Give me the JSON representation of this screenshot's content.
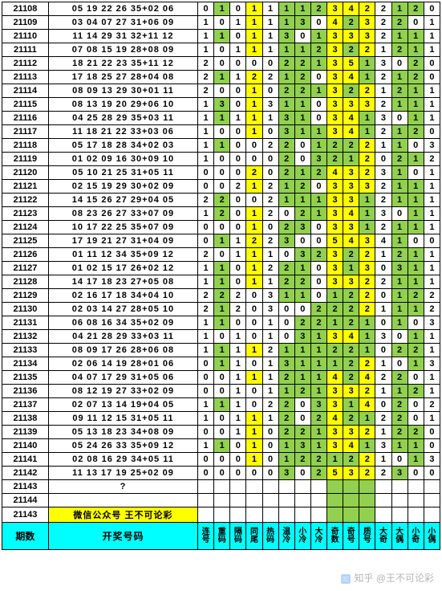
{
  "colors": {
    "green": "#92d050",
    "yellow": "#ffff00",
    "cyan": "#00ffff",
    "white": "#ffffff"
  },
  "greenish_columns": [
    1,
    5,
    6,
    7,
    9,
    10,
    12,
    13
  ],
  "rows": [
    {
      "p": "21108",
      "l": "05 19 22 26 35+02 06",
      "v": [
        0,
        1,
        0,
        1,
        1,
        1,
        1,
        2,
        3,
        4,
        2,
        2,
        1,
        2,
        0
      ]
    },
    {
      "p": "21109",
      "l": "03 04 07 27 31+06 09",
      "v": [
        1,
        0,
        1,
        1,
        1,
        1,
        3,
        0,
        4,
        2,
        3,
        2,
        2,
        0,
        1
      ]
    },
    {
      "p": "21110",
      "l": "11 14 29 31 32+11 12",
      "v": [
        1,
        1,
        0,
        1,
        1,
        3,
        0,
        1,
        3,
        3,
        3,
        2,
        1,
        1,
        1
      ]
    },
    {
      "p": "21111",
      "l": "07 08 15 19 28+08 09",
      "v": [
        1,
        0,
        1,
        1,
        1,
        1,
        1,
        2,
        3,
        2,
        2,
        1,
        2,
        1,
        1
      ]
    },
    {
      "p": "21112",
      "l": "18 21 22 23 35+11 12",
      "v": [
        2,
        0,
        0,
        0,
        0,
        2,
        2,
        1,
        3,
        5,
        1,
        3,
        0,
        2,
        0
      ]
    },
    {
      "p": "21113",
      "l": "17 18 25 27 28+04 08",
      "v": [
        2,
        1,
        1,
        2,
        2,
        1,
        2,
        0,
        3,
        4,
        1,
        2,
        1,
        2,
        0
      ]
    },
    {
      "p": "21114",
      "l": "08 09 13 29 30+01 11",
      "v": [
        2,
        0,
        0,
        1,
        0,
        2,
        2,
        1,
        3,
        2,
        2,
        1,
        2,
        1,
        1
      ]
    },
    {
      "p": "21115",
      "l": "08 13 19 20 29+06 10",
      "v": [
        1,
        3,
        0,
        1,
        3,
        1,
        1,
        0,
        3,
        3,
        3,
        2,
        1,
        1,
        1
      ]
    },
    {
      "p": "21116",
      "l": "04 25 28 29 35+03 11",
      "v": [
        1,
        1,
        1,
        1,
        1,
        3,
        1,
        0,
        3,
        4,
        1,
        3,
        0,
        1,
        1
      ]
    },
    {
      "p": "21117",
      "l": "11 18 21 22 33+03 06",
      "v": [
        1,
        0,
        0,
        1,
        0,
        3,
        1,
        1,
        3,
        4,
        1,
        2,
        1,
        2,
        0
      ]
    },
    {
      "p": "21118",
      "l": "05 17 18 28 34+02 03",
      "v": [
        1,
        1,
        0,
        0,
        2,
        2,
        0,
        1,
        2,
        2,
        2,
        1,
        1,
        0,
        3
      ]
    },
    {
      "p": "21119",
      "l": "01 02 09 16 30+09 10",
      "v": [
        1,
        0,
        0,
        0,
        0,
        2,
        0,
        3,
        2,
        1,
        2,
        0,
        2,
        1,
        2
      ]
    },
    {
      "p": "21120",
      "l": "05 10 21 25 31+05 11",
      "v": [
        0,
        0,
        0,
        2,
        0,
        2,
        1,
        2,
        4,
        3,
        2,
        3,
        1,
        0,
        1
      ]
    },
    {
      "p": "21121",
      "l": "02 15 19 29 30+02 09",
      "v": [
        0,
        0,
        2,
        1,
        2,
        1,
        2,
        0,
        3,
        3,
        3,
        2,
        1,
        1,
        1
      ]
    },
    {
      "p": "21122",
      "l": "14 15 26 27 29+04 05",
      "v": [
        2,
        2,
        0,
        0,
        2,
        1,
        1,
        1,
        3,
        3,
        1,
        2,
        1,
        1,
        1
      ]
    },
    {
      "p": "21123",
      "l": "08 23 26 27 33+07 09",
      "v": [
        1,
        2,
        0,
        1,
        2,
        0,
        2,
        1,
        3,
        4,
        1,
        3,
        0,
        1,
        1
      ]
    },
    {
      "p": "21124",
      "l": "10 17 22 25 35+07 09",
      "v": [
        0,
        0,
        0,
        1,
        0,
        2,
        3,
        0,
        3,
        3,
        1,
        2,
        1,
        1,
        1
      ]
    },
    {
      "p": "21125",
      "l": "17 19 21 27 31+04 09",
      "v": [
        0,
        1,
        1,
        2,
        2,
        3,
        0,
        0,
        5,
        4,
        3,
        4,
        1,
        0,
        0
      ]
    },
    {
      "p": "21126",
      "l": "01 11 12 34 35+09 12",
      "v": [
        2,
        0,
        1,
        1,
        1,
        0,
        3,
        2,
        3,
        2,
        2,
        1,
        2,
        1,
        1
      ]
    },
    {
      "p": "21127",
      "l": "01 02 15 17 26+02 12",
      "v": [
        1,
        1,
        0,
        1,
        2,
        2,
        1,
        0,
        3,
        1,
        3,
        0,
        3,
        1,
        1
      ]
    },
    {
      "p": "21128",
      "l": "14 17 18 23 27+05 08",
      "v": [
        1,
        1,
        0,
        1,
        1,
        2,
        2,
        0,
        3,
        3,
        2,
        2,
        1,
        1,
        1
      ]
    },
    {
      "p": "21129",
      "l": "02 16 17 18 34+04 10",
      "v": [
        2,
        2,
        2,
        0,
        3,
        1,
        1,
        0,
        1,
        2,
        2,
        0,
        1,
        2,
        2
      ]
    },
    {
      "p": "21130",
      "l": "02 03 14 27 28+05 10",
      "v": [
        2,
        1,
        2,
        0,
        3,
        0,
        0,
        2,
        2,
        2,
        2,
        1,
        1,
        1,
        2
      ]
    },
    {
      "p": "21131",
      "l": "06 08 16 34 35+02 09",
      "v": [
        1,
        1,
        0,
        0,
        1,
        0,
        2,
        2,
        1,
        2,
        1,
        0,
        1,
        0,
        3
      ]
    },
    {
      "p": "21132",
      "l": "04 21 28 29 33+03 11",
      "v": [
        1,
        0,
        1,
        0,
        1,
        0,
        3,
        1,
        3,
        4,
        1,
        3,
        0,
        1,
        1
      ]
    },
    {
      "p": "21133",
      "l": "08 09 17 26 28+06 08",
      "v": [
        1,
        1,
        1,
        1,
        2,
        1,
        1,
        1,
        2,
        2,
        1,
        0,
        2,
        2,
        1
      ]
    },
    {
      "p": "21134",
      "l": "02 06 14 19 28+01 06",
      "v": [
        0,
        1,
        1,
        0,
        1,
        3,
        1,
        1,
        1,
        2,
        2,
        1,
        0,
        1,
        3
      ]
    },
    {
      "p": "21135",
      "l": "04 07 17 29 31+05 06",
      "v": [
        0,
        0,
        1,
        1,
        1,
        2,
        1,
        1,
        4,
        2,
        4,
        2,
        2,
        0,
        1
      ]
    },
    {
      "p": "21136",
      "l": "08 12 19 27 33+02 09",
      "v": [
        0,
        0,
        1,
        0,
        1,
        1,
        2,
        1,
        3,
        3,
        2,
        1,
        1,
        2,
        1
      ]
    },
    {
      "p": "21137",
      "l": "02 07 13 14 19+04 05",
      "v": [
        1,
        1,
        1,
        0,
        2,
        2,
        0,
        3,
        3,
        1,
        4,
        0,
        2,
        0,
        2
      ]
    },
    {
      "p": "21138",
      "l": "09 11 12 15 31+05 11",
      "v": [
        1,
        0,
        1,
        1,
        1,
        2,
        0,
        2,
        4,
        2,
        1,
        2,
        2,
        0,
        1
      ]
    },
    {
      "p": "21139",
      "l": "05 13 18 23 34+08 09",
      "v": [
        0,
        0,
        1,
        1,
        0,
        2,
        2,
        1,
        3,
        3,
        2,
        1,
        2,
        2,
        0
      ]
    },
    {
      "p": "21140",
      "l": "05 24 26 33 35+09 12",
      "v": [
        1,
        1,
        0,
        1,
        0,
        1,
        3,
        1,
        3,
        4,
        1,
        3,
        1,
        1,
        0
      ]
    },
    {
      "p": "21141",
      "l": "02 08 16 29 34+05 11",
      "v": [
        0,
        0,
        0,
        1,
        0,
        1,
        2,
        2,
        1,
        2,
        2,
        1,
        0,
        1,
        3
      ]
    },
    {
      "p": "21142",
      "l": "11 13 17 19 25+02 09",
      "v": [
        0,
        0,
        0,
        0,
        0,
        3,
        0,
        2,
        5,
        3,
        2,
        2,
        3,
        0,
        0
      ]
    }
  ],
  "blank_rows": [
    {
      "p": "21143",
      "l": "?"
    },
    {
      "p": "21144",
      "l": ""
    }
  ],
  "wechat_row": {
    "p": "21143",
    "text": "微信公众号 王不可论彩"
  },
  "footer": {
    "period_label": "期数",
    "lotto_label": "开奖号码",
    "col_labels": [
      "连号",
      "重码",
      "隔码",
      "同尾",
      "热码",
      "温冷",
      "小冷",
      "大冷",
      "奇数",
      "奇号",
      "质号",
      "大奇",
      "大偶",
      "小奇",
      "小偶"
    ]
  },
  "watermark": "知乎 @王不可论彩"
}
